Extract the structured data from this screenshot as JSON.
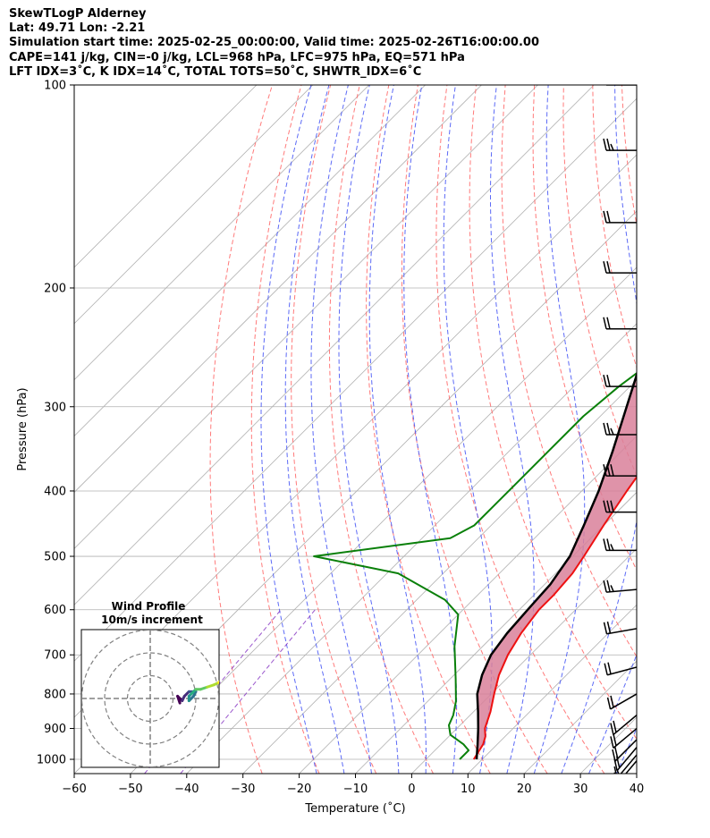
{
  "header": {
    "lines": [
      "SkewTLogP Alderney",
      "Lat: 49.71   Lon: -2.21",
      "Simulation start time: 2025-02-25_00:00:00, Valid time: 2025-02-26T16:00:00.00",
      "CAPE=141 j/kg, CIN=-0 j/kg, LCL=968 hPa, LFC=975 hPa, EQ=571 hPa",
      "LFT IDX=3˚C, K IDX=14˚C, TOTAL TOTS=50˚C, SHWTR_IDX=6˚C"
    ]
  },
  "chart_data": {
    "type": "line",
    "chart_kind": "skew-t log-p diagram",
    "xlabel": "Temperature (˚C)",
    "ylabel": "Pressure (hPa)",
    "xlim": [
      -60,
      40
    ],
    "ylim": [
      1050,
      100
    ],
    "y_scale": "log",
    "x_ticks": [
      -60,
      -50,
      -40,
      -30,
      -20,
      -10,
      0,
      10,
      20,
      30,
      40
    ],
    "x_tick_labels": [
      "−60",
      "−50",
      "−40",
      "−30",
      "−20",
      "−10",
      "0",
      "10",
      "20",
      "30",
      "40"
    ],
    "y_ticks": [
      100,
      200,
      300,
      400,
      500,
      600,
      700,
      800,
      900,
      1000
    ],
    "y_tick_labels": [
      "100",
      "200",
      "300",
      "400",
      "500",
      "600",
      "700",
      "800",
      "900",
      "1000"
    ],
    "grid": true,
    "colors": {
      "temperature": "#ee1111",
      "dewpoint": "#0a800a",
      "parcel": "#000000",
      "cape_fill": "#86b3d6",
      "cin_fill": "#d9809a",
      "dry_adiabat": "#ff6b6b",
      "moist_adiabat": "#4a5af5",
      "mixing_ratio": "#8a3bc4",
      "isotherm": "#b0b0b0"
    },
    "series": [
      {
        "key": "temperature",
        "points": [
          [
            8.5,
            1000
          ],
          [
            7.5,
            950
          ],
          [
            6.5,
            925
          ],
          [
            5.0,
            900
          ],
          [
            3.0,
            850
          ],
          [
            0.5,
            800
          ],
          [
            -2.0,
            750
          ],
          [
            -4.0,
            700
          ],
          [
            -5.5,
            650
          ],
          [
            -6.5,
            600
          ],
          [
            -6.5,
            570
          ],
          [
            -7.0,
            530
          ],
          [
            -8.0,
            500
          ],
          [
            -10.0,
            450
          ],
          [
            -12.0,
            400
          ],
          [
            -14.0,
            350
          ],
          [
            -15.0,
            310
          ],
          [
            -15.5,
            290
          ],
          [
            -15.0,
            260
          ],
          [
            -14.5,
            240
          ],
          [
            -13.5,
            220
          ],
          [
            -12.0,
            200
          ],
          [
            -9.0,
            180
          ],
          [
            -8.5,
            160
          ],
          [
            -8.0,
            145
          ],
          [
            -7.0,
            130
          ],
          [
            -6.5,
            115
          ],
          [
            -7.0,
            100
          ]
        ]
      },
      {
        "key": "dewpoint",
        "points": [
          [
            6.0,
            1000
          ],
          [
            6.0,
            970
          ],
          [
            4.0,
            950
          ],
          [
            0.0,
            920
          ],
          [
            -2.0,
            890
          ],
          [
            -3.0,
            860
          ],
          [
            -5.0,
            820
          ],
          [
            -9.0,
            760
          ],
          [
            -15.0,
            680
          ],
          [
            -20.0,
            610
          ],
          [
            -25.0,
            580
          ],
          [
            -38.0,
            530
          ],
          [
            -56.0,
            500
          ],
          [
            -35.0,
            470
          ],
          [
            -33.0,
            450
          ],
          [
            -33.0,
            420
          ],
          [
            -33.0,
            390
          ],
          [
            -33.0,
            350
          ],
          [
            -33.0,
            310
          ],
          [
            -32.0,
            280
          ],
          [
            -30.0,
            250
          ],
          [
            -28.0,
            230
          ],
          [
            -29.0,
            210
          ],
          [
            -32.5,
            190
          ],
          [
            -30.0,
            170
          ],
          [
            -27.0,
            150
          ],
          [
            -23.0,
            130
          ],
          [
            -20.0,
            115
          ],
          [
            -16.0,
            100
          ]
        ]
      },
      {
        "key": "parcel",
        "points": [
          [
            9.0,
            1000
          ],
          [
            6.5,
            950
          ],
          [
            3.8,
            900
          ],
          [
            0.8,
            850
          ],
          [
            -2.5,
            800
          ],
          [
            -5.0,
            750
          ],
          [
            -7.0,
            700
          ],
          [
            -8.0,
            650
          ],
          [
            -8.5,
            600
          ],
          [
            -9.0,
            550
          ],
          [
            -10.5,
            500
          ],
          [
            -13.5,
            450
          ],
          [
            -17.0,
            400
          ],
          [
            -21.5,
            350
          ],
          [
            -27.0,
            300
          ],
          [
            -33.5,
            250
          ],
          [
            -41.5,
            200
          ],
          [
            -52.0,
            150
          ],
          [
            -66.0,
            100
          ]
        ]
      }
    ],
    "wind_barbs": [
      {
        "p": 100,
        "speed_kt": 25,
        "dir_deg": 270
      },
      {
        "p": 125,
        "speed_kt": 25,
        "dir_deg": 270
      },
      {
        "p": 160,
        "speed_kt": 20,
        "dir_deg": 270
      },
      {
        "p": 190,
        "speed_kt": 20,
        "dir_deg": 270
      },
      {
        "p": 230,
        "speed_kt": 20,
        "dir_deg": 270
      },
      {
        "p": 280,
        "speed_kt": 20,
        "dir_deg": 270
      },
      {
        "p": 330,
        "speed_kt": 25,
        "dir_deg": 270
      },
      {
        "p": 380,
        "speed_kt": 30,
        "dir_deg": 270
      },
      {
        "p": 430,
        "speed_kt": 30,
        "dir_deg": 270
      },
      {
        "p": 490,
        "speed_kt": 25,
        "dir_deg": 270
      },
      {
        "p": 560,
        "speed_kt": 25,
        "dir_deg": 275
      },
      {
        "p": 640,
        "speed_kt": 20,
        "dir_deg": 280
      },
      {
        "p": 730,
        "speed_kt": 20,
        "dir_deg": 285
      },
      {
        "p": 800,
        "speed_kt": 20,
        "dir_deg": 300
      },
      {
        "p": 860,
        "speed_kt": 20,
        "dir_deg": 310
      },
      {
        "p": 900,
        "speed_kt": 20,
        "dir_deg": 310
      },
      {
        "p": 935,
        "speed_kt": 20,
        "dir_deg": 315
      },
      {
        "p": 960,
        "speed_kt": 20,
        "dir_deg": 320
      },
      {
        "p": 985,
        "speed_kt": 15,
        "dir_deg": 320
      },
      {
        "p": 1005,
        "speed_kt": 15,
        "dir_deg": 320
      }
    ]
  },
  "hodograph": {
    "title": "Wind Profile",
    "subtitle": "10m/s increment",
    "rings_ms": [
      10,
      20,
      30
    ],
    "trace": [
      [
        13,
        -2
      ],
      [
        12,
        1
      ],
      [
        14,
        -1
      ],
      [
        15,
        1
      ],
      [
        17,
        3
      ],
      [
        20,
        3
      ],
      [
        19,
        1
      ],
      [
        17,
        -1
      ],
      [
        17,
        1
      ],
      [
        18,
        2
      ],
      [
        20,
        4
      ],
      [
        22,
        4
      ],
      [
        25,
        5
      ],
      [
        28,
        6
      ],
      [
        30,
        7
      ],
      [
        31,
        8
      ]
    ]
  }
}
